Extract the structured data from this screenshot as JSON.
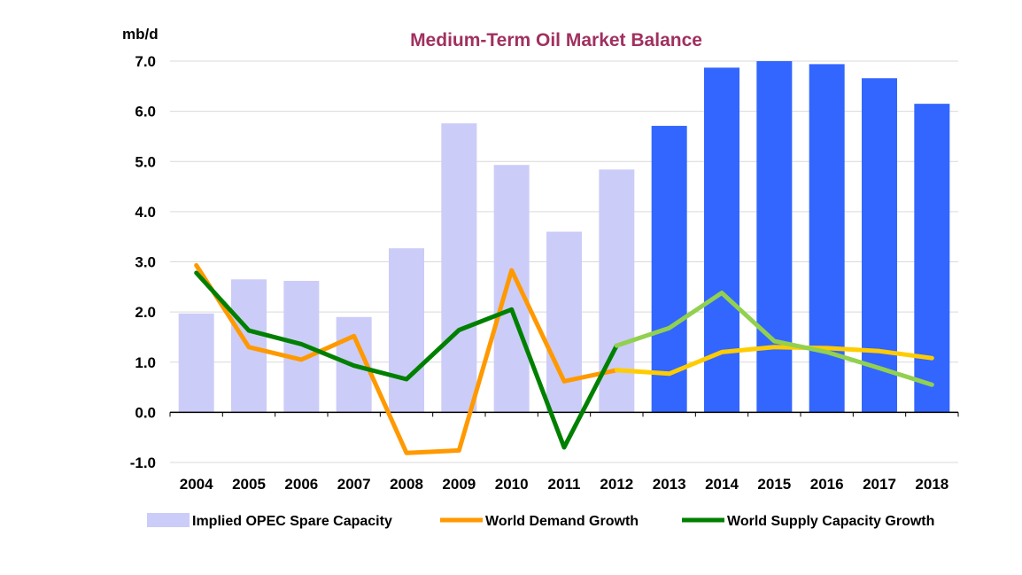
{
  "chart_data": {
    "type": "bar",
    "title": "Medium-Term Oil Market Balance",
    "unit_label": "mb/d",
    "ylim": [
      -1.0,
      7.0
    ],
    "y_ticks": [
      "7.0",
      "6.0",
      "5.0",
      "4.0",
      "3.0",
      "2.0",
      "1.0",
      "0.0",
      "-1.0"
    ],
    "grid": true,
    "legend_position": "bottom",
    "categories": [
      "2004",
      "2005",
      "2006",
      "2007",
      "2008",
      "2009",
      "2010",
      "2011",
      "2012",
      "2013",
      "2014",
      "2015",
      "2016",
      "2017",
      "2018"
    ],
    "series": [
      {
        "name": "Implied OPEC Spare Capacity",
        "type": "bar",
        "values": [
          1.97,
          2.65,
          2.62,
          1.9,
          3.27,
          5.76,
          4.93,
          3.6,
          4.84,
          5.71,
          6.87,
          7.0,
          6.94,
          6.66,
          6.15
        ],
        "color_historical": "#ccccf8",
        "color_forecast": "#3366ff"
      },
      {
        "name": "World Demand Growth",
        "type": "line",
        "values": [
          2.93,
          1.3,
          1.05,
          1.52,
          -0.81,
          -0.76,
          2.83,
          0.62,
          0.84,
          0.77,
          1.2,
          1.3,
          1.28,
          1.22,
          1.08
        ],
        "color_historical": "#ff9900",
        "color_forecast": "#ffcc00"
      },
      {
        "name": "World Supply Capacity Growth",
        "type": "line",
        "values": [
          2.78,
          1.63,
          1.36,
          0.93,
          0.66,
          1.64,
          2.05,
          -0.7,
          1.33,
          1.68,
          2.38,
          1.42,
          1.2,
          0.88,
          0.55
        ],
        "color_historical": "#008000",
        "color_forecast": "#92d050"
      }
    ],
    "forecast_start_index": 8,
    "forecast_bar_start_index": 9,
    "title_color": "#a0305f"
  }
}
